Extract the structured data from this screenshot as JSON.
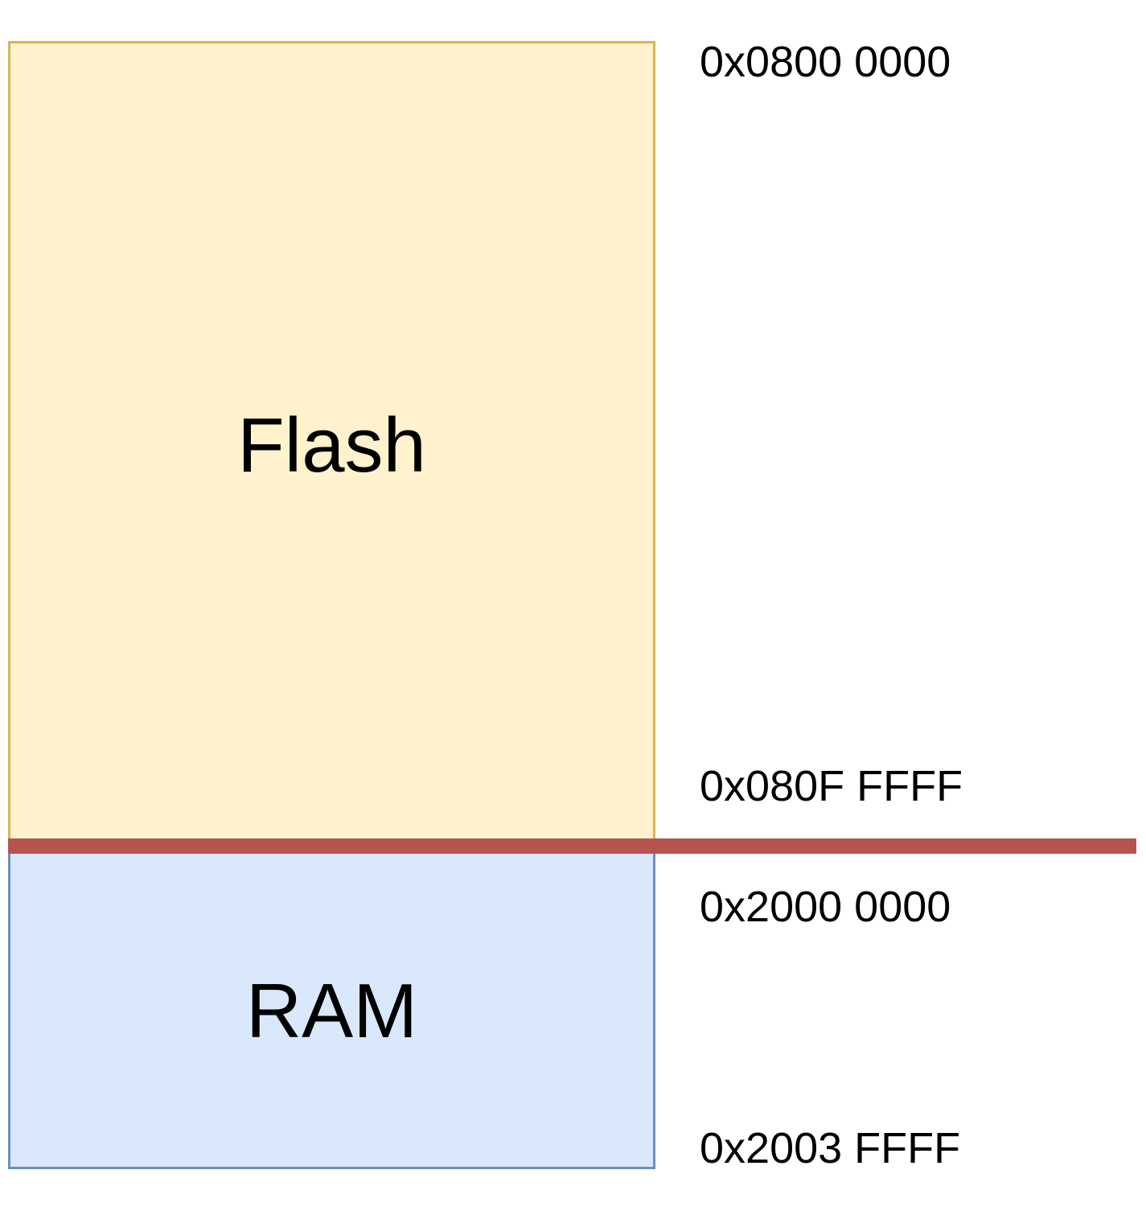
{
  "regions": {
    "flash": {
      "label": "Flash",
      "fill": "#FFF2CC",
      "border": "#D6B656",
      "start_address": "0x0800 0000",
      "end_address": "0x080F FFFF"
    },
    "ram": {
      "label": "RAM",
      "fill": "#DAE8FC",
      "border": "#6C8EBF",
      "start_address": "0x2000 0000",
      "end_address": "0x2003 FFFF"
    }
  },
  "boundary": {
    "color": "#B85450"
  }
}
